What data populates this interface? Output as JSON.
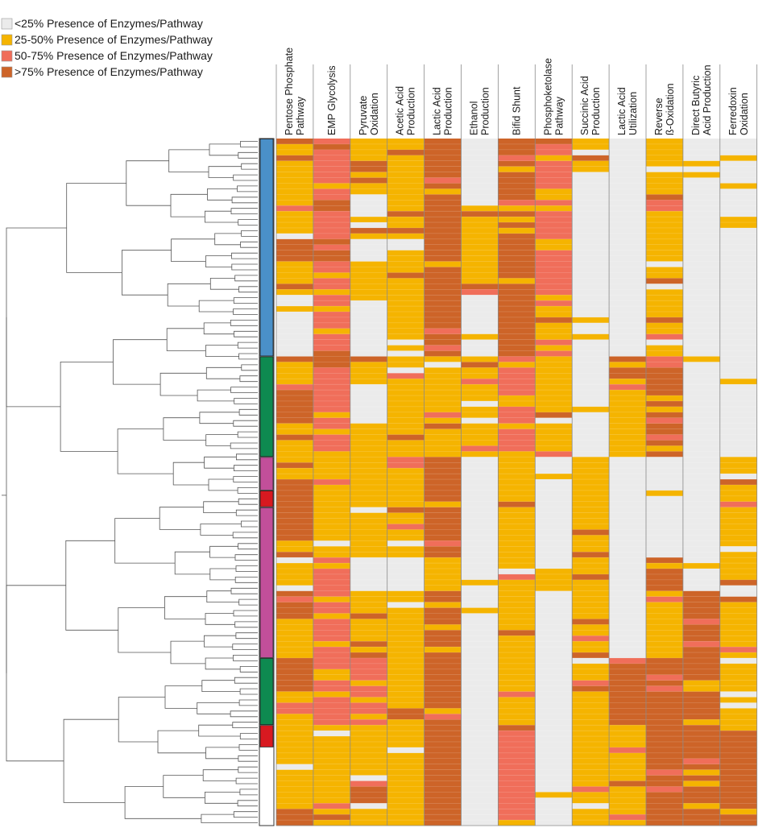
{
  "chart_data": {
    "type": "heatmap",
    "title": "",
    "legend": {
      "placement": "top-left",
      "entries": [
        {
          "label": "<25% Presence of Enzymes/Pathway",
          "color": "#ebebeb",
          "level": 0
        },
        {
          "label": "25-50% Presence of Enzymes/Pathway",
          "color": "#f5b400",
          "level": 1
        },
        {
          "label": "50-75% Presence of Enzymes/Pathway",
          "color": "#f06e5a",
          "level": 2
        },
        {
          "label": ">75% Presence of Enzymes/Pathway",
          "color": "#cd6428",
          "level": 3
        }
      ]
    },
    "columns": [
      {
        "lines": [
          "Pentose Phosphate",
          "Pathway"
        ]
      },
      {
        "lines": [
          "EMP Glycolysis"
        ]
      },
      {
        "lines": [
          "Pyruvate",
          "Oxidation"
        ]
      },
      {
        "lines": [
          "Acetic Acid",
          "Production"
        ]
      },
      {
        "lines": [
          "Lactic Acid",
          "Production"
        ]
      },
      {
        "lines": [
          "Ethanol",
          "Production"
        ]
      },
      {
        "lines": [
          "Bifid Shunt"
        ]
      },
      {
        "lines": [
          "Phosphoketolase",
          "Pathway"
        ]
      },
      {
        "lines": [
          "Succinic Acid",
          "Production"
        ]
      },
      {
        "lines": [
          "Lactic Acid",
          "Utilization"
        ]
      },
      {
        "lines": [
          "Reverse",
          "ß-Oxidation"
        ]
      },
      {
        "lines": [
          "Direct Butyric",
          "Acid Production"
        ]
      },
      {
        "lines": [
          "Ferredoxin",
          "Oxidation"
        ]
      }
    ],
    "row_count": 123,
    "groups": [
      {
        "color": "#4a90c8",
        "from_row": 0,
        "rows": 39
      },
      {
        "color": "#0e8a50",
        "from_row": 39,
        "rows": 18
      },
      {
        "color": "#c24f9a",
        "from_row": 57,
        "rows": 6
      },
      {
        "color": "#d81920",
        "from_row": 63,
        "rows": 3
      },
      {
        "color": "#c24f9a",
        "from_row": 66,
        "rows": 27
      },
      {
        "color": "#0e8a50",
        "from_row": 93,
        "rows": 12
      },
      {
        "color": "#d81920",
        "from_row": 105,
        "rows": 4
      }
    ],
    "segments": [
      [
        [
          0,
          18,
          1
        ],
        [
          18,
          22,
          3
        ],
        [
          22,
          28,
          1
        ],
        [
          28,
          39,
          0
        ],
        [
          39,
          45,
          1
        ],
        [
          45,
          51,
          3
        ],
        [
          51,
          57,
          1
        ],
        [
          57,
          61,
          1
        ],
        [
          61,
          75,
          3
        ],
        [
          75,
          81,
          1
        ],
        [
          81,
          87,
          3
        ],
        [
          87,
          93,
          1
        ],
        [
          93,
          99,
          3
        ],
        [
          99,
          105,
          1
        ],
        [
          105,
          123,
          1
        ]
      ],
      [
        [
          0,
          18,
          2
        ],
        [
          18,
          22,
          3
        ],
        [
          22,
          28,
          2
        ],
        [
          28,
          39,
          2
        ],
        [
          39,
          57,
          2
        ],
        [
          57,
          75,
          1
        ],
        [
          75,
          81,
          2
        ],
        [
          81,
          93,
          2
        ],
        [
          93,
          105,
          2
        ],
        [
          105,
          123,
          1
        ]
      ],
      [
        [
          0,
          10,
          1
        ],
        [
          10,
          14,
          0
        ],
        [
          14,
          18,
          1
        ],
        [
          18,
          22,
          0
        ],
        [
          22,
          30,
          1
        ],
        [
          30,
          39,
          0
        ],
        [
          39,
          45,
          1
        ],
        [
          45,
          51,
          0
        ],
        [
          51,
          57,
          1
        ],
        [
          57,
          75,
          1
        ],
        [
          75,
          81,
          0
        ],
        [
          81,
          87,
          1
        ],
        [
          87,
          93,
          1
        ],
        [
          93,
          105,
          2
        ],
        [
          105,
          123,
          1
        ]
      ],
      [
        [
          0,
          18,
          1
        ],
        [
          18,
          20,
          0
        ],
        [
          20,
          39,
          1
        ],
        [
          39,
          57,
          1
        ],
        [
          57,
          75,
          1
        ],
        [
          75,
          81,
          0
        ],
        [
          81,
          93,
          1
        ],
        [
          93,
          105,
          1
        ],
        [
          105,
          123,
          1
        ]
      ],
      [
        [
          0,
          39,
          3
        ],
        [
          39,
          51,
          1
        ],
        [
          51,
          57,
          1
        ],
        [
          57,
          75,
          3
        ],
        [
          75,
          81,
          1
        ],
        [
          81,
          99,
          3
        ],
        [
          99,
          123,
          3
        ]
      ],
      [
        [
          0,
          12,
          0
        ],
        [
          12,
          18,
          1
        ],
        [
          18,
          28,
          1
        ],
        [
          28,
          39,
          0
        ],
        [
          39,
          51,
          1
        ],
        [
          51,
          57,
          1
        ],
        [
          57,
          123,
          0
        ]
      ],
      [
        [
          0,
          39,
          3
        ],
        [
          39,
          57,
          2
        ],
        [
          57,
          75,
          1
        ],
        [
          75,
          93,
          1
        ],
        [
          93,
          105,
          1
        ],
        [
          105,
          123,
          2
        ]
      ],
      [
        [
          0,
          39,
          2
        ],
        [
          39,
          57,
          1
        ],
        [
          57,
          75,
          0
        ],
        [
          75,
          81,
          1
        ],
        [
          81,
          93,
          0
        ],
        [
          93,
          123,
          0
        ]
      ],
      [
        [
          0,
          6,
          1
        ],
        [
          6,
          39,
          0
        ],
        [
          39,
          57,
          0
        ],
        [
          57,
          75,
          1
        ],
        [
          75,
          93,
          1
        ],
        [
          93,
          123,
          1
        ]
      ],
      [
        [
          0,
          39,
          0
        ],
        [
          39,
          45,
          3
        ],
        [
          45,
          57,
          1
        ],
        [
          57,
          75,
          0
        ],
        [
          75,
          93,
          0
        ],
        [
          93,
          105,
          3
        ],
        [
          105,
          123,
          1
        ]
      ],
      [
        [
          0,
          39,
          1
        ],
        [
          39,
          57,
          3
        ],
        [
          57,
          75,
          0
        ],
        [
          75,
          81,
          3
        ],
        [
          81,
          93,
          1
        ],
        [
          93,
          105,
          3
        ],
        [
          105,
          123,
          3
        ]
      ],
      [
        [
          0,
          39,
          0
        ],
        [
          39,
          57,
          0
        ],
        [
          57,
          75,
          0
        ],
        [
          75,
          81,
          0
        ],
        [
          81,
          93,
          3
        ],
        [
          93,
          105,
          3
        ],
        [
          105,
          123,
          3
        ]
      ],
      [
        [
          0,
          39,
          0
        ],
        [
          39,
          57,
          0
        ],
        [
          57,
          75,
          1
        ],
        [
          75,
          93,
          1
        ],
        [
          93,
          105,
          1
        ],
        [
          105,
          123,
          3
        ]
      ]
    ]
  }
}
